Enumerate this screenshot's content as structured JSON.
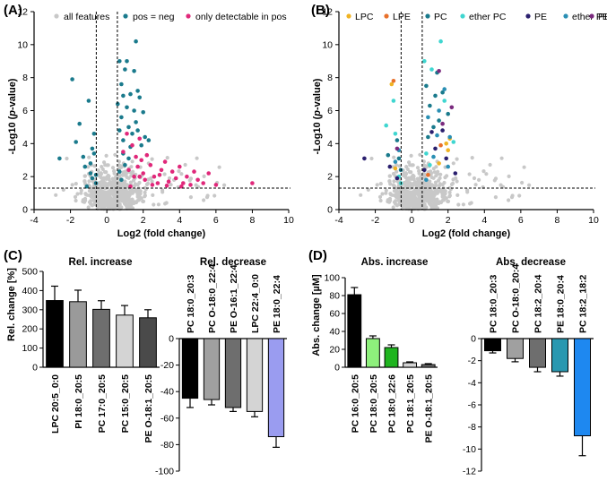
{
  "panels": [
    {
      "label": "(A)",
      "chart_data": {
        "type": "scatter",
        "title": "",
        "xlabel": "Log2 (fold change)",
        "ylabel": "-Log10 (p-value)",
        "xlim": [
          -4,
          10
        ],
        "ylim": [
          0,
          12
        ],
        "xticks": [
          -4,
          -2,
          0,
          2,
          4,
          6,
          8,
          10
        ],
        "yticks": [
          0,
          2,
          4,
          6,
          8,
          10,
          12
        ],
        "thresholds": {
          "x": [
            -0.58,
            0.58
          ],
          "y": 1.3
        },
        "legend": [
          {
            "name": "all features",
            "color": "#c8c8c8"
          },
          {
            "name": "pos = neg",
            "color": "#1a7a8c"
          },
          {
            "name": "only detectable in pos",
            "color": "#e0287a"
          }
        ],
        "series": [
          {
            "name": "pos = neg",
            "color": "#1a7a8c",
            "points": [
              [
                -2.6,
                3.1
              ],
              [
                -1.9,
                7.9
              ],
              [
                -1.7,
                4.1
              ],
              [
                -1.5,
                5.2
              ],
              [
                -1.3,
                3.2
              ],
              [
                -1.2,
                2.6
              ],
              [
                -1.0,
                6.6
              ],
              [
                -0.9,
                2.2
              ],
              [
                -0.8,
                1.9
              ],
              [
                -0.7,
                4.6
              ],
              [
                -0.7,
                3.4
              ],
              [
                -0.6,
                2.1
              ],
              [
                -0.6,
                1.6
              ],
              [
                -1.1,
                1.4
              ],
              [
                -0.9,
                2.8
              ],
              [
                -0.8,
                3.7
              ],
              [
                0.7,
                9.0
              ],
              [
                0.8,
                7.6
              ],
              [
                0.8,
                5.6
              ],
              [
                0.9,
                4.2
              ],
              [
                0.9,
                3.4
              ],
              [
                1.0,
                8.5
              ],
              [
                1.1,
                6.2
              ],
              [
                1.2,
                5.0
              ],
              [
                1.3,
                7.0
              ],
              [
                1.4,
                4.6
              ],
              [
                1.5,
                8.4
              ],
              [
                1.5,
                6.0
              ],
              [
                1.6,
                10.2
              ],
              [
                1.6,
                5.3
              ],
              [
                1.7,
                7.2
              ],
              [
                1.8,
                6.8
              ],
              [
                1.9,
                3.9
              ],
              [
                2.0,
                5.9
              ],
              [
                2.1,
                4.4
              ],
              [
                0.7,
                2.3
              ],
              [
                0.8,
                1.8
              ],
              [
                1.0,
                2.7
              ],
              [
                1.2,
                3.1
              ],
              [
                0.6,
                6.4
              ],
              [
                0.9,
                6.9
              ],
              [
                1.3,
                3.8
              ],
              [
                1.7,
                4.8
              ],
              [
                2.3,
                4.2
              ],
              [
                0.7,
                4.8
              ],
              [
                1.1,
                9.0
              ]
            ]
          },
          {
            "name": "only detectable in pos",
            "color": "#e0287a",
            "points": [
              [
                0.9,
                3.5
              ],
              [
                1.1,
                4.6
              ],
              [
                1.2,
                2.4
              ],
              [
                1.4,
                3.9
              ],
              [
                1.5,
                2.0
              ],
              [
                1.6,
                3.2
              ],
              [
                1.7,
                2.6
              ],
              [
                1.8,
                4.3
              ],
              [
                1.9,
                3.0
              ],
              [
                2.0,
                2.2
              ],
              [
                2.1,
                1.8
              ],
              [
                2.2,
                3.3
              ],
              [
                2.4,
                2.7
              ],
              [
                2.6,
                2.0
              ],
              [
                2.8,
                1.6
              ],
              [
                3.0,
                2.4
              ],
              [
                3.2,
                2.9
              ],
              [
                3.4,
                1.7
              ],
              [
                3.6,
                2.3
              ],
              [
                3.8,
                1.9
              ],
              [
                4.0,
                2.6
              ],
              [
                4.2,
                1.6
              ],
              [
                4.4,
                2.0
              ],
              [
                4.6,
                1.5
              ],
              [
                4.8,
                2.3
              ],
              [
                5.0,
                1.8
              ],
              [
                5.3,
                1.6
              ],
              [
                5.6,
                2.2
              ],
              [
                6.0,
                1.5
              ],
              [
                8.0,
                1.6
              ],
              [
                1.3,
                1.4
              ],
              [
                2.5,
                1.5
              ],
              [
                3.3,
                1.45
              ],
              [
                4.1,
                1.4
              ],
              [
                1.8,
                2.0
              ],
              [
                2.9,
                2.1
              ]
            ]
          }
        ]
      }
    },
    {
      "label": "(B)",
      "chart_data": {
        "type": "scatter",
        "title": "",
        "xlabel": "Log2 (fold change)",
        "ylabel": "-Log10 (p-value)",
        "xlim": [
          -4,
          10
        ],
        "ylim": [
          0,
          12
        ],
        "xticks": [
          -4,
          -2,
          0,
          2,
          4,
          6,
          8,
          10
        ],
        "yticks": [
          0,
          2,
          4,
          6,
          8,
          10,
          12
        ],
        "thresholds": {
          "x": [
            -0.58,
            0.58
          ],
          "y": 1.3
        },
        "legend": [
          {
            "name": "LPC",
            "color": "#f0b323"
          },
          {
            "name": "LPE",
            "color": "#e8702a"
          },
          {
            "name": "PC",
            "color": "#1a7a8c"
          },
          {
            "name": "ether PC",
            "color": "#3fd6d0"
          },
          {
            "name": "PE",
            "color": "#2a1f6e"
          },
          {
            "name": "ether PE",
            "color": "#2a8fb4"
          },
          {
            "name": "PI",
            "color": "#7a2a7e"
          }
        ],
        "series": [
          {
            "name": "LPC",
            "color": "#f0b323",
            "points": [
              [
                -1.1,
                7.6
              ],
              [
                1.9,
                4.0
              ],
              [
                2.0,
                3.6
              ],
              [
                1.5,
                2.8
              ],
              [
                -0.9,
                2.5
              ],
              [
                2.1,
                4.3
              ]
            ]
          },
          {
            "name": "LPE",
            "color": "#e8702a",
            "points": [
              [
                -1.0,
                7.8
              ],
              [
                1.6,
                3.9
              ],
              [
                0.9,
                2.1
              ]
            ]
          },
          {
            "name": "PC",
            "color": "#1a7a8c",
            "points": [
              [
                -0.8,
                4.2
              ],
              [
                -0.7,
                3.1
              ],
              [
                -0.6,
                2.4
              ],
              [
                0.8,
                7.5
              ],
              [
                1.0,
                6.3
              ],
              [
                1.3,
                6.9
              ],
              [
                1.4,
                8.3
              ],
              [
                1.5,
                5.4
              ],
              [
                1.7,
                7.1
              ],
              [
                2.0,
                5.8
              ],
              [
                0.9,
                4.4
              ],
              [
                1.2,
                5.0
              ],
              [
                -1.3,
                3.3
              ]
            ]
          },
          {
            "name": "ether PC",
            "color": "#3fd6d0",
            "points": [
              [
                -1.4,
                5.1
              ],
              [
                -1.0,
                6.6
              ],
              [
                -0.9,
                4.6
              ],
              [
                -0.7,
                2.0
              ],
              [
                0.7,
                9.0
              ],
              [
                1.1,
                8.5
              ],
              [
                1.6,
                10.2
              ],
              [
                1.8,
                6.6
              ],
              [
                0.8,
                3.4
              ],
              [
                1.0,
                2.7
              ],
              [
                2.3,
                4.1
              ],
              [
                -0.6,
                1.6
              ]
            ]
          },
          {
            "name": "PE",
            "color": "#2a1f6e",
            "points": [
              [
                -2.6,
                3.1
              ],
              [
                -1.2,
                2.6
              ],
              [
                -0.8,
                1.9
              ],
              [
                1.1,
                4.7
              ],
              [
                1.3,
                3.7
              ],
              [
                1.7,
                4.8
              ],
              [
                1.9,
                3.1
              ],
              [
                2.4,
                2.2
              ],
              [
                0.7,
                2.4
              ]
            ]
          },
          {
            "name": "ether PE",
            "color": "#2a8fb4",
            "points": [
              [
                -0.9,
                2.9
              ],
              [
                -0.7,
                3.6
              ],
              [
                0.9,
                5.6
              ],
              [
                1.2,
                3.2
              ],
              [
                1.5,
                6.0
              ],
              [
                1.4,
                4.5
              ],
              [
                2.1,
                4.4
              ],
              [
                0.8,
                1.8
              ],
              [
                1.8,
                7.3
              ],
              [
                2.0,
                2.6
              ]
            ]
          },
          {
            "name": "PI",
            "color": "#7a2a7e",
            "points": [
              [
                1.5,
                8.4
              ],
              [
                1.7,
                5.2
              ],
              [
                2.2,
                6.2
              ],
              [
                -0.8,
                3.7
              ]
            ]
          }
        ]
      }
    },
    {
      "label": "(C)",
      "ylabel": "Rel. change [%]",
      "charts": [
        {
          "type": "bar",
          "title": "Rel. increase",
          "categories": [
            "LPC 20:5_0:0",
            "PI 18:0_20:5",
            "PC 17:0_20:5",
            "PC 15:0_20:5",
            "PE O-18:1_20:5"
          ],
          "values": [
            348,
            342,
            302,
            272,
            258
          ],
          "errors": [
            75,
            60,
            45,
            50,
            42
          ],
          "colors": [
            "#000000",
            "#9a9a9a",
            "#6e6e6e",
            "#d4d4d4",
            "#4a4a4a"
          ],
          "ylim": [
            0,
            500
          ],
          "yticks": [
            0,
            100,
            200,
            300,
            400,
            500
          ]
        },
        {
          "type": "bar",
          "title": "Rel. decrease",
          "categories": [
            "PC 18:0_20:3",
            "PC O-18:0_22:4",
            "PE O-16:1_22:4",
            "LPC 22:4_0:0",
            "PE 18:0_22:4"
          ],
          "values": [
            -45,
            -46,
            -52,
            -55,
            -74
          ],
          "errors": [
            7,
            4,
            3,
            4,
            8
          ],
          "colors": [
            "#000000",
            "#a0a0a0",
            "#6e6e6e",
            "#d4d4d4",
            "#9a9cf0"
          ],
          "ylim": [
            -100,
            0
          ],
          "yticks": [
            -100,
            -80,
            -60,
            -40,
            -20,
            0
          ]
        }
      ]
    },
    {
      "label": "(D)",
      "ylabel": "Abs. change [µM]",
      "charts": [
        {
          "type": "bar",
          "title": "Abs. increase",
          "categories": [
            "PC 16:0_20:5",
            "PC 18:0_20:5",
            "PC 18:0_22:6",
            "PC 18:1_20:5",
            "PE O-18:1_20:5"
          ],
          "values": [
            81,
            32,
            22,
            5,
            3
          ],
          "errors": [
            8,
            3,
            3,
            1,
            1
          ],
          "colors": [
            "#000000",
            "#8ef07c",
            "#1fb41f",
            "#d4d4d4",
            "#6e6e6e"
          ],
          "ylim": [
            0,
            100
          ],
          "yticks": [
            0,
            20,
            40,
            60,
            80,
            100
          ]
        },
        {
          "type": "bar",
          "title": "Abs. decrease",
          "categories": [
            "PC 18:0_20:3",
            "PC O-18:0_20:4",
            "PC 18:2_20:4",
            "PE 18:0_20:4",
            "PC 18:2_18:2"
          ],
          "values": [
            -1.1,
            -1.8,
            -2.6,
            -3.0,
            -8.8
          ],
          "errors": [
            0.2,
            0.3,
            0.4,
            0.4,
            1.8
          ],
          "colors": [
            "#000000",
            "#a0a0a0",
            "#6e6e6e",
            "#2a98b0",
            "#1e88f0"
          ],
          "ylim": [
            -12,
            0
          ],
          "yticks": [
            -12,
            -10,
            -8,
            -6,
            -4,
            -2,
            0
          ]
        }
      ]
    }
  ],
  "background_color": "#c8c8c8",
  "background_count": 620
}
